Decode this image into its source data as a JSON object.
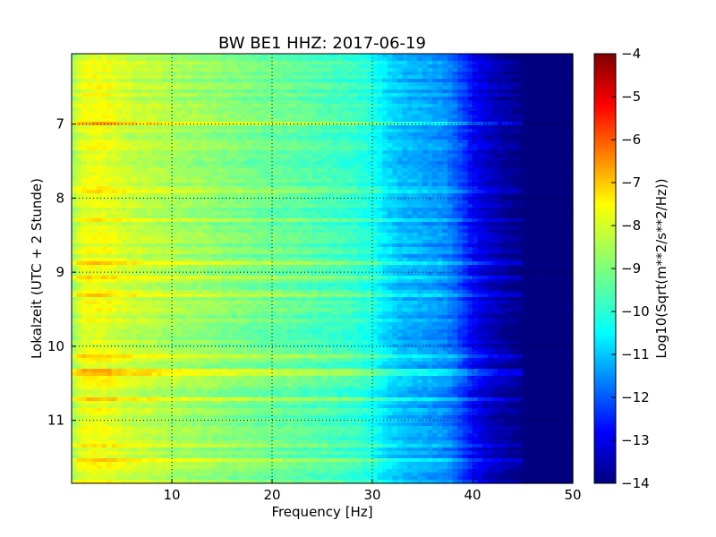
{
  "chart_data": {
    "type": "heatmap",
    "title": "BW BE1 HHZ: 2017-06-19",
    "xlabel": "Frequency [Hz]",
    "ylabel": "Lokalzeit (UTC + 2 Stunde)",
    "xlim": [
      0,
      50
    ],
    "ylim": [
      11.85,
      6.05
    ],
    "y_inverted": true,
    "x_ticks": [
      10,
      20,
      30,
      40,
      50
    ],
    "y_ticks": [
      7,
      8,
      9,
      10,
      11
    ],
    "grid": true,
    "colorbar": {
      "label": "Log10(Sqrt(m**2/s**2/Hz))",
      "colormap": "jet",
      "range": [
        -14,
        -4
      ],
      "ticks": [
        -4,
        -5,
        -6,
        -7,
        -8,
        -9,
        -10,
        -11,
        -12,
        -13,
        -14
      ]
    },
    "spectrum_profile": {
      "frequency_hz": [
        0,
        1,
        2,
        3,
        4,
        5,
        6,
        8,
        10,
        12,
        15,
        18,
        20,
        22,
        25,
        28,
        30,
        31,
        32,
        33,
        34,
        35,
        36,
        37,
        38,
        39,
        40,
        41,
        42,
        43,
        44,
        45,
        46,
        47,
        48,
        50
      ],
      "log_amplitude": [
        -8.7,
        -8.0,
        -7.9,
        -7.9,
        -8.0,
        -8.2,
        -8.3,
        -8.4,
        -8.6,
        -8.7,
        -8.9,
        -9.1,
        -9.2,
        -9.3,
        -9.5,
        -9.7,
        -10.0,
        -10.4,
        -10.7,
        -10.9,
        -11.0,
        -11.1,
        -11.2,
        -11.3,
        -11.6,
        -12.1,
        -12.7,
        -13.1,
        -13.4,
        -13.6,
        -13.8,
        -14.0,
        -14.0,
        -14.0,
        -14.0,
        -14.0
      ]
    },
    "bright_time_bands_hours": [
      7.0,
      7.9,
      8.3,
      8.88,
      9.08,
      9.3,
      10.13,
      10.35,
      10.73,
      11.35,
      11.55
    ]
  }
}
